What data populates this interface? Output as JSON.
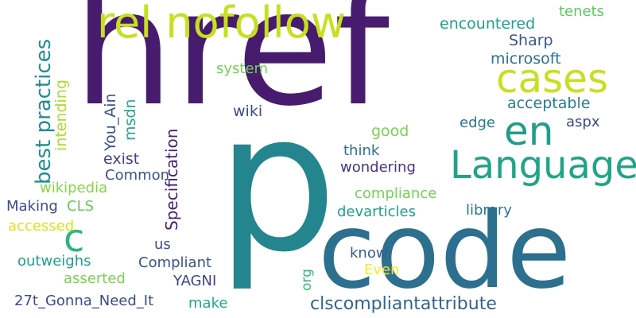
{
  "words": [
    {
      "text": "href",
      "color": "#471b6e",
      "vertical": false
    },
    {
      "text": "p",
      "color": "#25858e",
      "vertical": false
    },
    {
      "text": "code",
      "color": "#2d6f8e",
      "vertical": false
    },
    {
      "text": "rel nofollow",
      "color": "#c6e020",
      "vertical": false
    },
    {
      "text": "cases",
      "color": "#c6e020",
      "vertical": false
    },
    {
      "text": "en",
      "color": "#1f9e89",
      "vertical": false
    },
    {
      "text": "Language",
      "color": "#20a486",
      "vertical": false
    },
    {
      "text": "c",
      "color": "#2fb47c",
      "vertical": false
    },
    {
      "text": "best practices",
      "color": "#228b8d",
      "vertical": true
    },
    {
      "text": "intending",
      "color": "#addc30",
      "vertical": true
    },
    {
      "text": "You_Ain",
      "color": "#3b528b",
      "vertical": true
    },
    {
      "text": "msdn",
      "color": "#24aa83",
      "vertical": true
    },
    {
      "text": "Specification",
      "color": "#481f70",
      "vertical": true
    },
    {
      "text": "org",
      "color": "#35b779",
      "vertical": true
    },
    {
      "text": "encountered",
      "color": "#1f9e89",
      "vertical": false
    },
    {
      "text": "tenets",
      "color": "#5ec962",
      "vertical": false
    },
    {
      "text": "Sharp",
      "color": "#39568c",
      "vertical": false
    },
    {
      "text": "microsoft",
      "color": "#2c728e",
      "vertical": false
    },
    {
      "text": "system",
      "color": "#74d055",
      "vertical": false
    },
    {
      "text": "acceptable",
      "color": "#287c8e",
      "vertical": false
    },
    {
      "text": "wiki",
      "color": "#3e4a89",
      "vertical": false
    },
    {
      "text": "aspx",
      "color": "#3e4a89",
      "vertical": false
    },
    {
      "text": "edge",
      "color": "#2a778e",
      "vertical": false
    },
    {
      "text": "good",
      "color": "#7ad151",
      "vertical": false
    },
    {
      "text": "think",
      "color": "#2d708e",
      "vertical": false
    },
    {
      "text": "exist",
      "color": "#433e85",
      "vertical": false
    },
    {
      "text": "wondering",
      "color": "#46337e",
      "vertical": false
    },
    {
      "text": "Common",
      "color": "#3b528b",
      "vertical": false
    },
    {
      "text": "wikipedia",
      "color": "#86d549",
      "vertical": false
    },
    {
      "text": "compliance",
      "color": "#73d056",
      "vertical": false
    },
    {
      "text": "Making",
      "color": "#3e4989",
      "vertical": false
    },
    {
      "text": "CLS",
      "color": "#65cb5e",
      "vertical": false
    },
    {
      "text": "devarticles",
      "color": "#1f9e89",
      "vertical": false
    },
    {
      "text": "library",
      "color": "#2c738e",
      "vertical": false
    },
    {
      "text": "accessed",
      "color": "#dde318",
      "vertical": false
    },
    {
      "text": "us",
      "color": "#3e4a89",
      "vertical": false
    },
    {
      "text": "outweighs",
      "color": "#1fa088",
      "vertical": false
    },
    {
      "text": "Compliant",
      "color": "#3b528b",
      "vertical": false
    },
    {
      "text": "know",
      "color": "#365c8d",
      "vertical": false
    },
    {
      "text": "Even",
      "color": "#fde725",
      "vertical": false
    },
    {
      "text": "asserted",
      "color": "#7ad151",
      "vertical": false
    },
    {
      "text": "YAGNI",
      "color": "#414487",
      "vertical": false
    },
    {
      "text": "27t_Gonna_Need_It",
      "color": "#3e4a89",
      "vertical": false
    },
    {
      "text": "make",
      "color": "#22a884",
      "vertical": false
    },
    {
      "text": "clscompliantattribute",
      "color": "#33638d",
      "vertical": false
    }
  ]
}
